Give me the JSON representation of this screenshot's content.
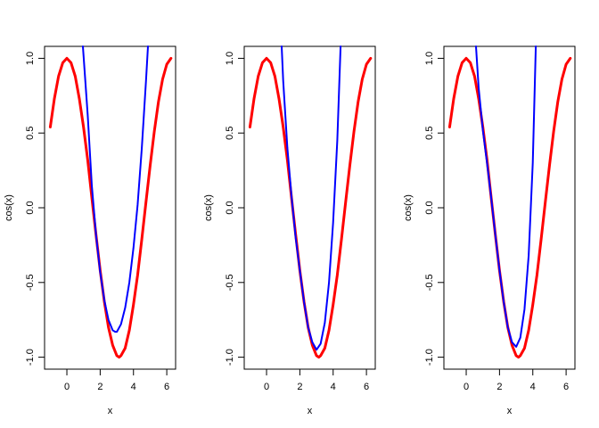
{
  "chart_data": [
    {
      "type": "line",
      "x_label": "x",
      "y_label": "cos(x)",
      "xlim": [
        -1.34,
        6.53
      ],
      "ylim": [
        -1.08,
        1.08
      ],
      "xticks": [
        0,
        2,
        4,
        6
      ],
      "yticks": [
        {
          "value": -1,
          "label": "-1.0"
        },
        {
          "value": -0.5,
          "label": "-0.5"
        },
        {
          "value": 0,
          "label": "0.0"
        },
        {
          "value": 0.5,
          "label": "0.5"
        },
        {
          "value": 1,
          "label": "1.0"
        }
      ],
      "series": [
        {
          "color": "red",
          "x": [
            -1,
            -0.75,
            -0.5,
            -0.25,
            0,
            0.25,
            0.5,
            0.75,
            1,
            1.25,
            1.5,
            1.75,
            2,
            2.25,
            2.5,
            2.75,
            3,
            3.14,
            3.25,
            3.5,
            3.75,
            4,
            4.25,
            4.5,
            4.75,
            5,
            5.25,
            5.5,
            5.75,
            6,
            6.25
          ],
          "values": [
            0.54,
            0.73,
            0.88,
            0.97,
            1,
            0.97,
            0.88,
            0.73,
            0.54,
            0.32,
            0.07,
            -0.18,
            -0.42,
            -0.63,
            -0.8,
            -0.92,
            -0.99,
            -1,
            -0.99,
            -0.94,
            -0.82,
            -0.65,
            -0.45,
            -0.21,
            0.04,
            0.28,
            0.51,
            0.71,
            0.86,
            0.96,
            1
          ]
        },
        {
          "color": "blue",
          "x": [
            0.96,
            1.25,
            1.5,
            1.75,
            2,
            2.25,
            2.5,
            2.75,
            2.9,
            3,
            3.25,
            3.5,
            3.75,
            4,
            4.25,
            4.5,
            4.75,
            4.87
          ],
          "values": [
            1.08,
            0.62,
            0.15,
            -0.18,
            -0.43,
            -0.62,
            -0.75,
            -0.82,
            -0.83,
            -0.83,
            -0.78,
            -0.67,
            -0.5,
            -0.27,
            0.02,
            0.4,
            0.85,
            1.08
          ]
        }
      ]
    },
    {
      "type": "line",
      "x_label": "x",
      "y_label": "cos(x)",
      "xlim": [
        -1.34,
        6.53
      ],
      "ylim": [
        -1.08,
        1.08
      ],
      "xticks": [
        0,
        2,
        4,
        6
      ],
      "yticks": [
        {
          "value": -1,
          "label": "-1.0"
        },
        {
          "value": -0.5,
          "label": "-0.5"
        },
        {
          "value": 0,
          "label": "0.0"
        },
        {
          "value": 0.5,
          "label": "0.5"
        },
        {
          "value": 1,
          "label": "1.0"
        }
      ],
      "series": [
        {
          "color": "red",
          "x": [
            -1,
            -0.75,
            -0.5,
            -0.25,
            0,
            0.25,
            0.5,
            0.75,
            1,
            1.25,
            1.5,
            1.75,
            2,
            2.25,
            2.5,
            2.75,
            3,
            3.14,
            3.25,
            3.5,
            3.75,
            4,
            4.25,
            4.5,
            4.75,
            5,
            5.25,
            5.5,
            5.75,
            6,
            6.25
          ],
          "values": [
            0.54,
            0.73,
            0.88,
            0.97,
            1,
            0.97,
            0.88,
            0.73,
            0.54,
            0.32,
            0.07,
            -0.18,
            -0.42,
            -0.63,
            -0.8,
            -0.92,
            -0.99,
            -1,
            -0.99,
            -0.94,
            -0.82,
            -0.65,
            -0.45,
            -0.21,
            0.04,
            0.28,
            0.51,
            0.71,
            0.86,
            0.96,
            1
          ]
        },
        {
          "color": "blue",
          "x": [
            0.91,
            1,
            1.25,
            1.5,
            1.75,
            2,
            2.25,
            2.5,
            2.75,
            3,
            3.25,
            3.5,
            3.75,
            4,
            4.25,
            4.45
          ],
          "values": [
            1.08,
            0.85,
            0.4,
            0.08,
            -0.2,
            -0.42,
            -0.63,
            -0.8,
            -0.9,
            -0.95,
            -0.91,
            -0.77,
            -0.5,
            -0.1,
            0.45,
            1.08
          ]
        }
      ]
    },
    {
      "type": "line",
      "x_label": "x",
      "y_label": "cos(x)",
      "xlim": [
        -1.34,
        6.53
      ],
      "ylim": [
        -1.08,
        1.08
      ],
      "xticks": [
        0,
        2,
        4,
        6
      ],
      "yticks": [
        {
          "value": -1,
          "label": "-1.0"
        },
        {
          "value": -0.5,
          "label": "-0.5"
        },
        {
          "value": 0,
          "label": "0.0"
        },
        {
          "value": 0.5,
          "label": "0.5"
        },
        {
          "value": 1,
          "label": "1.0"
        }
      ],
      "series": [
        {
          "color": "red",
          "x": [
            -1,
            -0.75,
            -0.5,
            -0.25,
            0,
            0.25,
            0.5,
            0.75,
            1,
            1.25,
            1.5,
            1.75,
            2,
            2.25,
            2.5,
            2.75,
            3,
            3.14,
            3.25,
            3.5,
            3.75,
            4,
            4.25,
            4.5,
            4.75,
            5,
            5.25,
            5.5,
            5.75,
            6,
            6.25
          ],
          "values": [
            0.54,
            0.73,
            0.88,
            0.97,
            1,
            0.97,
            0.88,
            0.73,
            0.54,
            0.32,
            0.07,
            -0.18,
            -0.42,
            -0.63,
            -0.8,
            -0.92,
            -0.99,
            -1,
            -0.99,
            -0.94,
            -0.82,
            -0.65,
            -0.45,
            -0.21,
            0.04,
            0.28,
            0.51,
            0.71,
            0.86,
            0.96,
            1
          ]
        },
        {
          "color": "blue",
          "x": [
            0.59,
            0.75,
            1,
            1.25,
            1.5,
            1.75,
            2,
            2.25,
            2.5,
            2.75,
            3,
            3.25,
            3.5,
            3.75,
            4,
            4.18
          ],
          "values": [
            1.08,
            0.8,
            0.52,
            0.3,
            0.07,
            -0.18,
            -0.42,
            -0.63,
            -0.8,
            -0.9,
            -0.93,
            -0.87,
            -0.68,
            -0.32,
            0.3,
            1.08
          ]
        }
      ]
    }
  ]
}
